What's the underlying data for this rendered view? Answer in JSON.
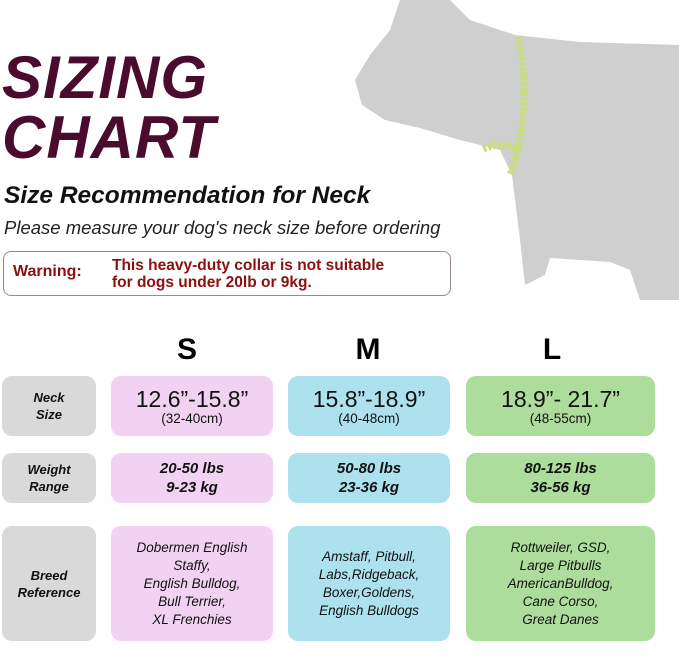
{
  "title": {
    "line1": "SIZING",
    "line2": "CHART"
  },
  "subtitle": "Size Recommendation for Neck",
  "instruction": "Please measure your dog's neck size before ordering",
  "warning": {
    "label": "Warning:",
    "line1": "This heavy-duty collar is not suitable",
    "line2": "for dogs under 20lb or 9kg."
  },
  "colors": {
    "title": "#4a0b2c",
    "warning": "#8b1010",
    "small": "#f2d2f2",
    "medium": "#aee1ee",
    "large": "#addd9c",
    "label": "#d9d9d9"
  },
  "sizes": [
    "S",
    "M",
    "L"
  ],
  "rows": {
    "neck": {
      "label1": "Neck",
      "label2": "Size",
      "values": [
        {
          "in": "12.6”-15.8”",
          "cm": "(32-40cm)"
        },
        {
          "in": "15.8”-18.9”",
          "cm": "(40-48cm)"
        },
        {
          "in": "18.9”- 21.7”",
          "cm": "(48-55cm)"
        }
      ]
    },
    "weight": {
      "label1": "Weight",
      "label2": "Range",
      "values": [
        {
          "lbs": "20-50 lbs",
          "kg": "9-23 kg"
        },
        {
          "lbs": "50-80 lbs",
          "kg": "23-36 kg"
        },
        {
          "lbs": "80-125 lbs",
          "kg": "36-56 kg"
        }
      ]
    },
    "breed": {
      "label1": "Breed",
      "label2": "Reference",
      "values": [
        [
          "Dobermen English",
          "Staffy,",
          "English Bulldog,",
          "Bull Terrier,",
          "XL Frenchies"
        ],
        [
          "Amstaff, Pitbull,",
          "Labs,Ridgeback,",
          "Boxer,Goldens,",
          "English Bulldogs"
        ],
        [
          "Rottweiler, GSD,",
          "Large Pitbulls",
          "AmericanBulldog,",
          "Cane Corso,",
          "Great Danes"
        ]
      ]
    }
  }
}
